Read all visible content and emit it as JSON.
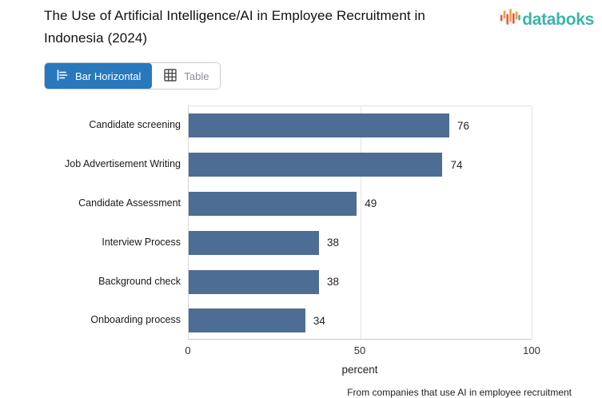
{
  "header": {
    "title": "The Use of Artificial Intelligence/AI in Employee Recruitment in Indonesia (2024)",
    "brand": "databoks"
  },
  "toolbar": {
    "bar_horizontal_label": "Bar Horizontal",
    "table_label": "Table"
  },
  "chart_data": {
    "type": "bar",
    "orientation": "horizontal",
    "title": "The Use of Artificial Intelligence/AI in Employee Recruitment in Indonesia (2024)",
    "categories": [
      "Candidate screening",
      "Job Advertisement Writing",
      "Candidate Assessment",
      "Interview Process",
      "Background check",
      "Onboarding process"
    ],
    "values": [
      76,
      74,
      49,
      38,
      38,
      34
    ],
    "xlabel": "percent",
    "ylabel": "",
    "xlim": [
      0,
      100
    ],
    "xticks": [
      0,
      50,
      100
    ],
    "grid": true,
    "data_labels": true,
    "bar_color": "#4e6d94"
  },
  "footnote": "From companies that use AI in employee recruitment",
  "colors": {
    "bar": "#4e6d94",
    "active_button": "#2878bd",
    "brand_teal": "#3ab5ab",
    "brand_orange": "#f59d3d",
    "brand_red": "#e2574c"
  }
}
